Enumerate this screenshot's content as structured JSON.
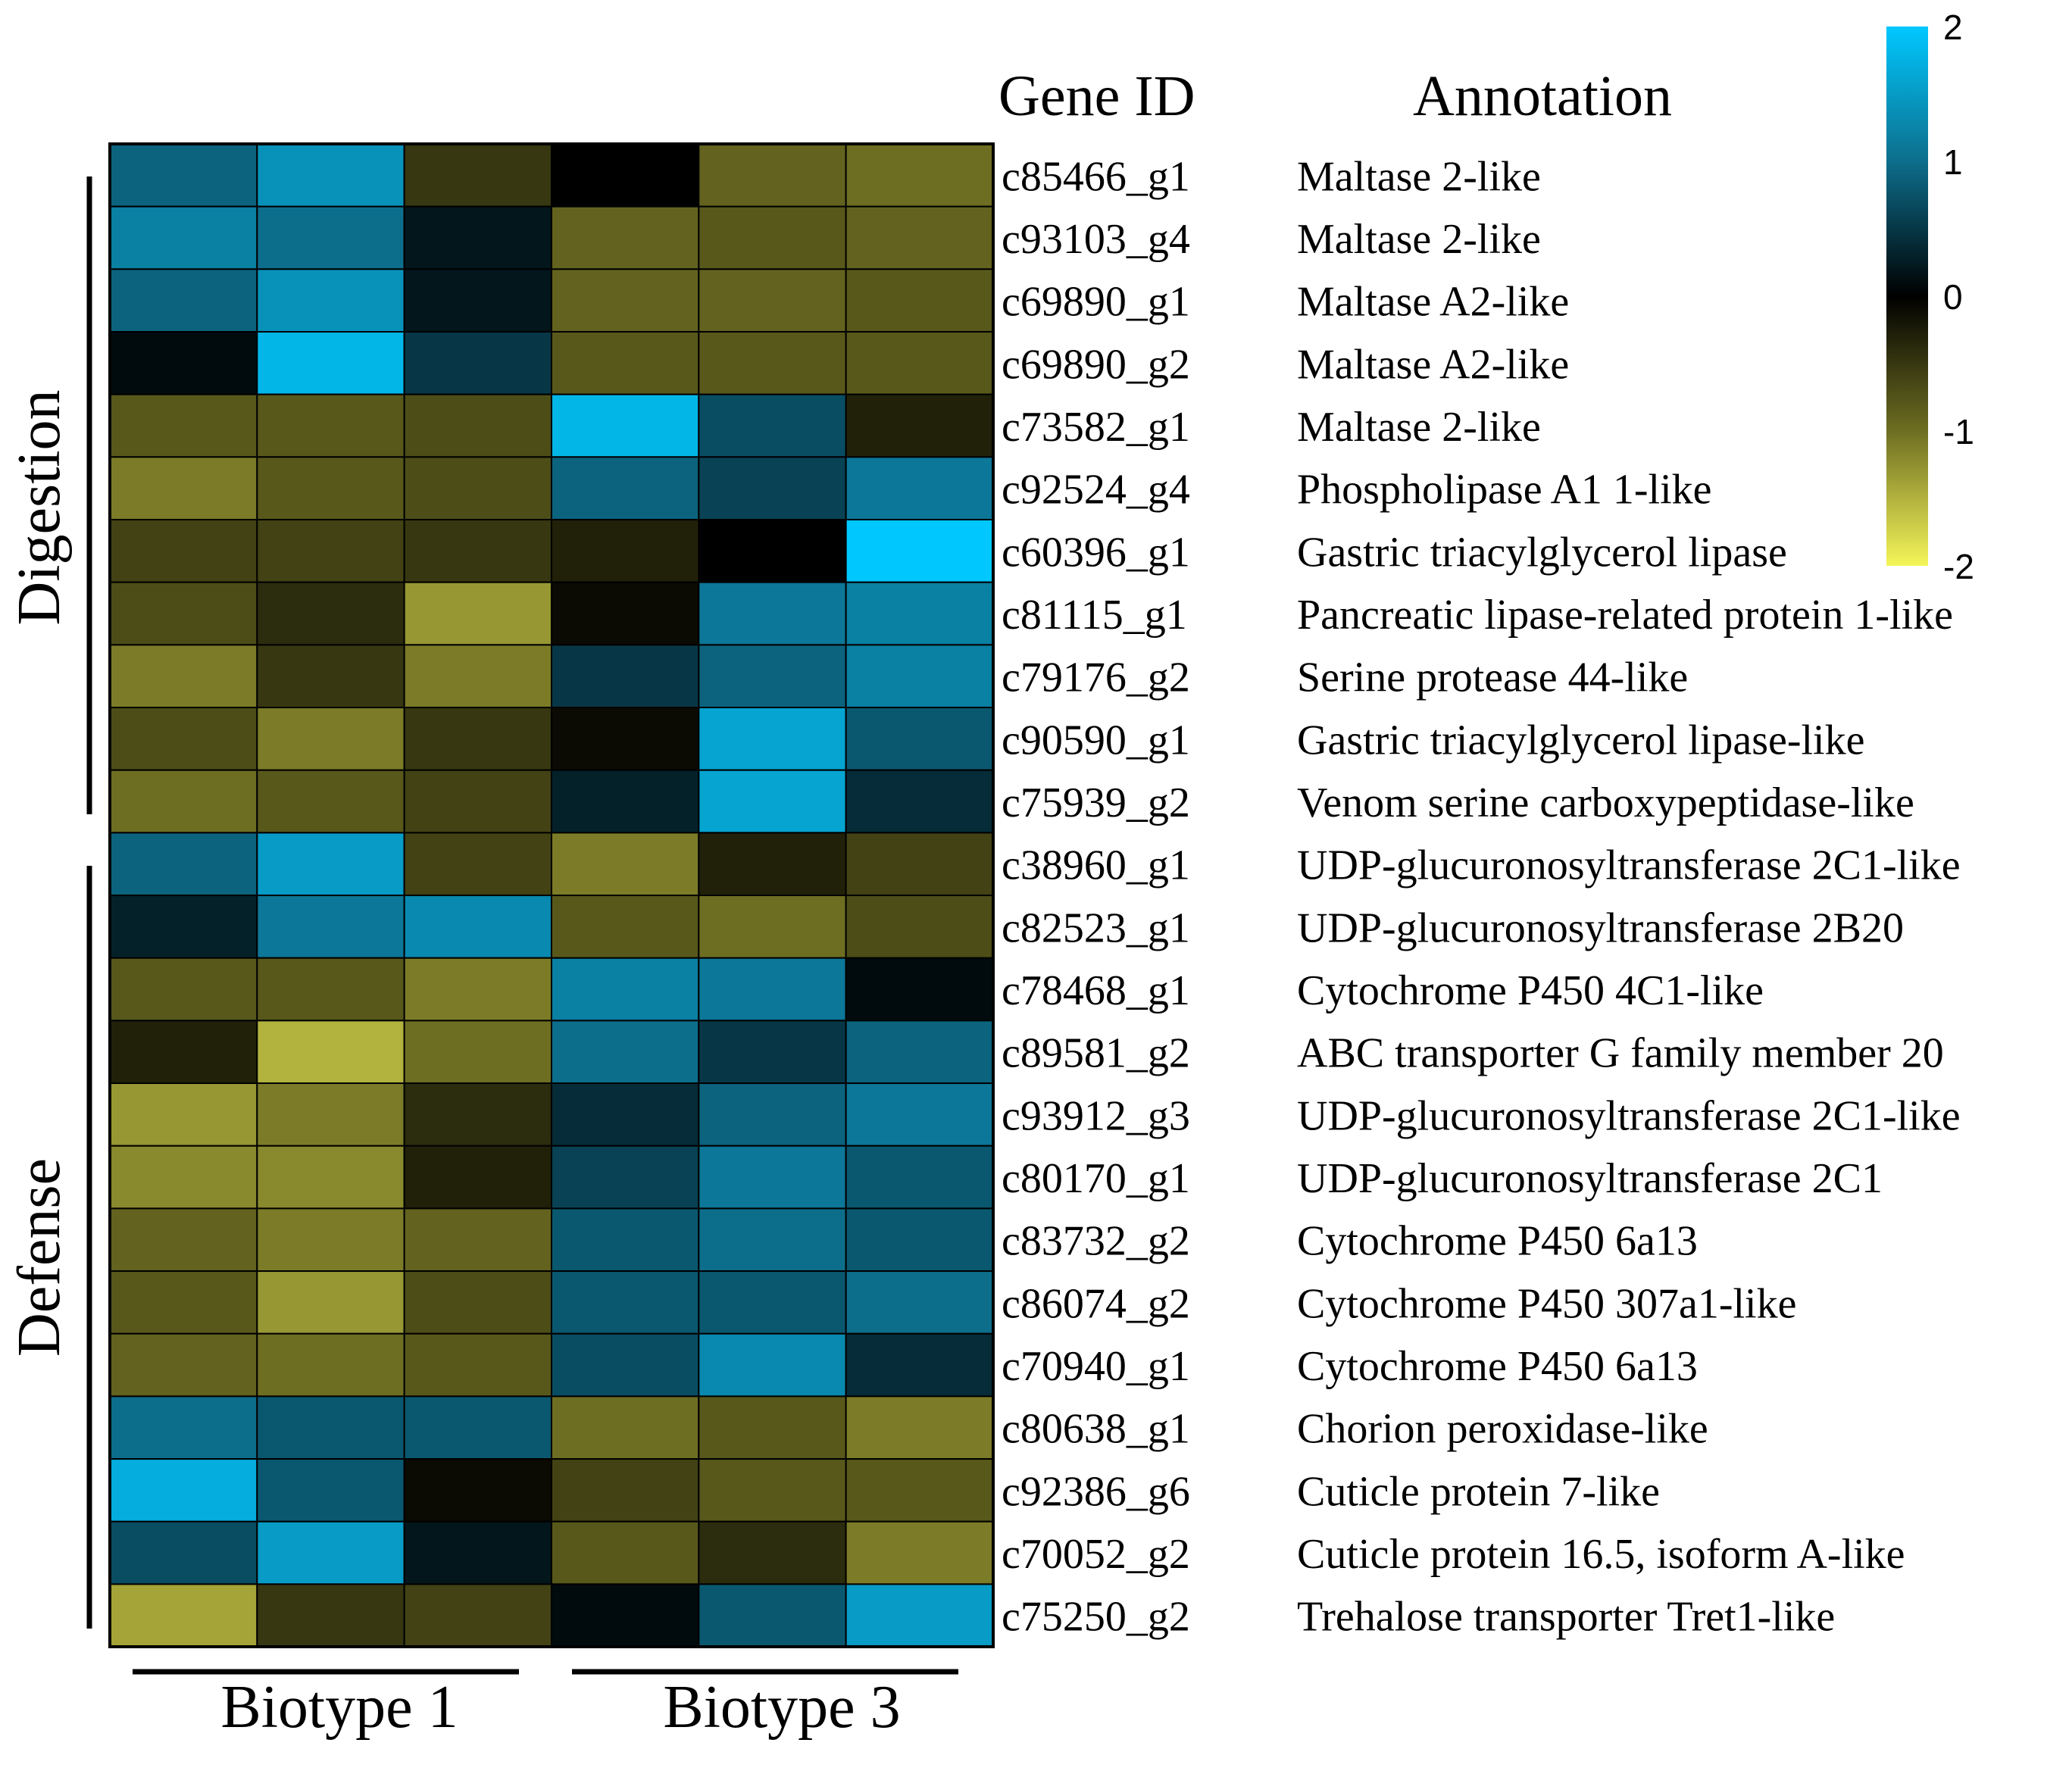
{
  "chart_data": {
    "type": "heatmap",
    "column_headers": {
      "gene_id": "Gene ID",
      "annotation": "Annotation"
    },
    "groups": [
      {
        "label": "Digestion",
        "rows": [
          0,
          10
        ]
      },
      {
        "label": "Defense",
        "rows": [
          11,
          23
        ]
      }
    ],
    "column_groups": [
      {
        "label": "Biotype 1",
        "columns": [
          0,
          2
        ]
      },
      {
        "label": "Biotype 3",
        "columns": [
          3,
          5
        ]
      }
    ],
    "colorbar": {
      "ticks": [
        "2",
        "1",
        "0",
        "-1",
        "-2"
      ],
      "range": [
        -2,
        2
      ],
      "colors": {
        "high": "#00c8ff",
        "mid_high": "#0d6e8c",
        "zero": "#000000",
        "mid_low": "#6e6e22",
        "low": "#f5f55a"
      }
    },
    "rows": [
      {
        "gene_id": "c85466_g1",
        "annotation": "Maltase 2-like",
        "values": [
          0.9,
          1.4,
          -0.5,
          0.0,
          -0.9,
          -1.0
        ]
      },
      {
        "gene_id": "c93103_g4",
        "annotation": "Maltase 2-like",
        "values": [
          1.2,
          1.0,
          0.2,
          -0.9,
          -0.8,
          -0.9
        ]
      },
      {
        "gene_id": "c69890_g1",
        "annotation": "Maltase A2-like",
        "values": [
          0.9,
          1.4,
          0.2,
          -0.9,
          -0.9,
          -0.8
        ]
      },
      {
        "gene_id": "c69890_g2",
        "annotation": "Maltase A2-like",
        "values": [
          0.1,
          1.8,
          0.5,
          -0.8,
          -0.8,
          -0.8
        ]
      },
      {
        "gene_id": "c73582_g1",
        "annotation": "Maltase 2-like",
        "values": [
          -0.8,
          -0.8,
          -0.7,
          1.8,
          0.7,
          -0.3
        ]
      },
      {
        "gene_id": "c92524_g4",
        "annotation": "Phospholipase A1 1-like",
        "values": [
          -1.1,
          -0.8,
          -0.7,
          0.9,
          0.6,
          1.1
        ]
      },
      {
        "gene_id": "c60396_g1",
        "annotation": "Gastric triacylglycerol lipase",
        "values": [
          -0.6,
          -0.6,
          -0.5,
          -0.3,
          0.0,
          2.0
        ]
      },
      {
        "gene_id": "c81115_g1",
        "annotation": "Pancreatic lipase-related protein 1-like",
        "values": [
          -0.7,
          -0.4,
          -1.3,
          -0.1,
          1.1,
          1.2
        ]
      },
      {
        "gene_id": "c79176_g2",
        "annotation": "Serine protease 44-like",
        "values": [
          -1.1,
          -0.5,
          -1.1,
          0.5,
          0.9,
          1.2
        ]
      },
      {
        "gene_id": "c90590_g1",
        "annotation": "Gastric triacylglycerol lipase-like",
        "values": [
          -0.7,
          -1.1,
          -0.5,
          -0.1,
          1.6,
          0.8
        ]
      },
      {
        "gene_id": "c75939_g2",
        "annotation": "Venom serine carboxypeptidase-like",
        "values": [
          -1.0,
          -0.8,
          -0.6,
          0.3,
          1.6,
          0.4
        ]
      },
      {
        "gene_id": "c38960_g1",
        "annotation": "UDP-glucuronosyltransferase 2C1-like",
        "values": [
          0.9,
          1.5,
          -0.6,
          -1.1,
          -0.3,
          -0.6
        ]
      },
      {
        "gene_id": "c82523_g1",
        "annotation": "UDP-glucuronosyltransferase 2B20",
        "values": [
          0.3,
          1.1,
          1.3,
          -0.8,
          -1.0,
          -0.7
        ]
      },
      {
        "gene_id": "c78468_g1",
        "annotation": "Cytochrome P450 4C1-like",
        "values": [
          -0.8,
          -0.8,
          -1.1,
          1.2,
          1.1,
          0.1
        ]
      },
      {
        "gene_id": "c89581_g2",
        "annotation": "ABC transporter G family member 20",
        "values": [
          -0.3,
          -1.5,
          -1.0,
          1.0,
          0.5,
          0.9
        ]
      },
      {
        "gene_id": "c93912_g3",
        "annotation": "UDP-glucuronosyltransferase 2C1-like",
        "values": [
          -1.3,
          -1.1,
          -0.4,
          0.4,
          0.9,
          1.1
        ]
      },
      {
        "gene_id": "c80170_g1",
        "annotation": "UDP-glucuronosyltransferase 2C1",
        "values": [
          -1.2,
          -1.2,
          -0.3,
          0.6,
          1.1,
          0.8
        ]
      },
      {
        "gene_id": "c83732_g2",
        "annotation": "Cytochrome P450 6a13",
        "values": [
          -0.9,
          -1.1,
          -0.9,
          0.8,
          1.0,
          0.8
        ]
      },
      {
        "gene_id": "c86074_g2",
        "annotation": "Cytochrome P450 307a1-like",
        "values": [
          -0.8,
          -1.3,
          -0.7,
          0.8,
          0.8,
          1.0
        ]
      },
      {
        "gene_id": "c70940_g1",
        "annotation": "Cytochrome P450 6a13",
        "values": [
          -0.9,
          -1.0,
          -0.8,
          0.7,
          1.3,
          0.4
        ]
      },
      {
        "gene_id": "c80638_g1",
        "annotation": "Chorion peroxidase-like",
        "values": [
          1.0,
          0.8,
          0.8,
          -1.0,
          -0.8,
          -1.1
        ]
      },
      {
        "gene_id": "c92386_g6",
        "annotation": "Cuticle protein 7-like",
        "values": [
          1.7,
          0.8,
          -0.1,
          -0.6,
          -0.8,
          -0.8
        ]
      },
      {
        "gene_id": "c70052_g2",
        "annotation": "Cuticle protein 16.5, isoform A-like",
        "values": [
          0.7,
          1.5,
          0.2,
          -0.8,
          -0.4,
          -1.1
        ]
      },
      {
        "gene_id": "c75250_g2",
        "annotation": "Trehalose transporter Tret1-like",
        "values": [
          -1.4,
          -0.5,
          -0.6,
          0.1,
          0.8,
          1.5
        ]
      }
    ]
  }
}
